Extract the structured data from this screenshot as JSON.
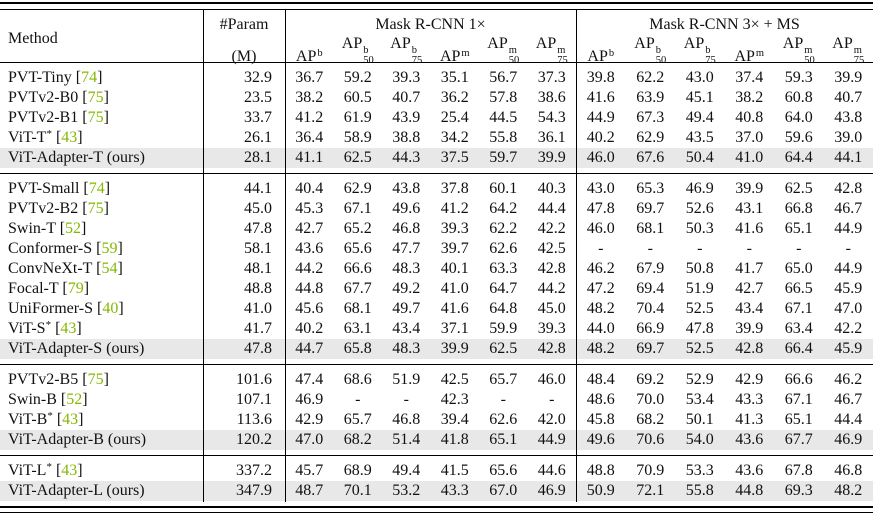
{
  "colors": {
    "citation": "#84b802",
    "highlight": "#e8e8e8"
  },
  "table": {
    "header": {
      "method_label": "Method",
      "param_label": "#Param",
      "param_unit": "(M)",
      "ap_base": "AP",
      "groups": [
        {
          "title": "Mask R-CNN 1×",
          "columns": [
            {
              "sup": "b",
              "sub": ""
            },
            {
              "sup": "b",
              "sub": "50"
            },
            {
              "sup": "b",
              "sub": "75"
            },
            {
              "sup": "m",
              "sub": ""
            },
            {
              "sup": "m",
              "sub": "50"
            },
            {
              "sup": "m",
              "sub": "75"
            }
          ]
        },
        {
          "title": "Mask R-CNN 3× + MS",
          "columns": [
            {
              "sup": "b",
              "sub": ""
            },
            {
              "sup": "b",
              "sub": "50"
            },
            {
              "sup": "b",
              "sub": "75"
            },
            {
              "sup": "m",
              "sub": ""
            },
            {
              "sup": "m",
              "sub": "50"
            },
            {
              "sup": "m",
              "sub": "75"
            }
          ]
        }
      ]
    },
    "blocks": [
      {
        "rows": [
          {
            "method": "PVT-Tiny",
            "star": false,
            "ref": "74",
            "suffix": "",
            "highlight": false,
            "param": "32.9",
            "values": [
              "36.7",
              "59.2",
              "39.3",
              "35.1",
              "56.7",
              "37.3",
              "39.8",
              "62.2",
              "43.0",
              "37.4",
              "59.3",
              "39.9"
            ]
          },
          {
            "method": "PVTv2-B0",
            "star": false,
            "ref": "75",
            "suffix": "",
            "highlight": false,
            "param": "23.5",
            "values": [
              "38.2",
              "60.5",
              "40.7",
              "36.2",
              "57.8",
              "38.6",
              "41.6",
              "63.9",
              "45.1",
              "38.2",
              "60.8",
              "40.7"
            ]
          },
          {
            "method": "PVTv2-B1",
            "star": false,
            "ref": "75",
            "suffix": "",
            "highlight": false,
            "param": "33.7",
            "values": [
              "41.2",
              "61.9",
              "43.9",
              "25.4",
              "44.5",
              "54.3",
              "44.9",
              "67.3",
              "49.4",
              "40.8",
              "64.0",
              "43.8"
            ]
          },
          {
            "method": "ViT-T",
            "star": true,
            "ref": "43",
            "suffix": "",
            "highlight": false,
            "param": "26.1",
            "values": [
              "36.4",
              "58.9",
              "38.8",
              "34.2",
              "55.8",
              "36.1",
              "40.2",
              "62.9",
              "43.5",
              "37.0",
              "59.6",
              "39.0"
            ]
          },
          {
            "method": "ViT-Adapter-T",
            "star": false,
            "ref": "",
            "suffix": "(ours)",
            "highlight": true,
            "param": "28.1",
            "values": [
              "41.1",
              "62.5",
              "44.3",
              "37.5",
              "59.7",
              "39.9",
              "46.0",
              "67.6",
              "50.4",
              "41.0",
              "64.4",
              "44.1"
            ]
          }
        ]
      },
      {
        "rows": [
          {
            "method": "PVT-Small",
            "star": false,
            "ref": "74",
            "suffix": "",
            "highlight": false,
            "param": "44.1",
            "values": [
              "40.4",
              "62.9",
              "43.8",
              "37.8",
              "60.1",
              "40.3",
              "43.0",
              "65.3",
              "46.9",
              "39.9",
              "62.5",
              "42.8"
            ]
          },
          {
            "method": "PVTv2-B2",
            "star": false,
            "ref": "75",
            "suffix": "",
            "highlight": false,
            "param": "45.0",
            "values": [
              "45.3",
              "67.1",
              "49.6",
              "41.2",
              "64.2",
              "44.4",
              "47.8",
              "69.7",
              "52.6",
              "43.1",
              "66.8",
              "46.7"
            ]
          },
          {
            "method": "Swin-T",
            "star": false,
            "ref": "52",
            "suffix": "",
            "highlight": false,
            "param": "47.8",
            "values": [
              "42.7",
              "65.2",
              "46.8",
              "39.3",
              "62.2",
              "42.2",
              "46.0",
              "68.1",
              "50.3",
              "41.6",
              "65.1",
              "44.9"
            ]
          },
          {
            "method": "Conformer-S",
            "star": false,
            "ref": "59",
            "suffix": "",
            "highlight": false,
            "param": "58.1",
            "values": [
              "43.6",
              "65.6",
              "47.7",
              "39.7",
              "62.6",
              "42.5",
              "-",
              "-",
              "-",
              "-",
              "-",
              "-"
            ]
          },
          {
            "method": "ConvNeXt-T",
            "star": false,
            "ref": "54",
            "suffix": "",
            "highlight": false,
            "param": "48.1",
            "values": [
              "44.2",
              "66.6",
              "48.3",
              "40.1",
              "63.3",
              "42.8",
              "46.2",
              "67.9",
              "50.8",
              "41.7",
              "65.0",
              "44.9"
            ]
          },
          {
            "method": "Focal-T",
            "star": false,
            "ref": "79",
            "suffix": "",
            "highlight": false,
            "param": "48.8",
            "values": [
              "44.8",
              "67.7",
              "49.2",
              "41.0",
              "64.7",
              "44.2",
              "47.2",
              "69.4",
              "51.9",
              "42.7",
              "66.5",
              "45.9"
            ]
          },
          {
            "method": "UniFormer-S",
            "star": false,
            "ref": "40",
            "suffix": "",
            "highlight": false,
            "param": "41.0",
            "values": [
              "45.6",
              "68.1",
              "49.7",
              "41.6",
              "64.8",
              "45.0",
              "48.2",
              "70.4",
              "52.5",
              "43.4",
              "67.1",
              "47.0"
            ]
          },
          {
            "method": "ViT-S",
            "star": true,
            "ref": "43",
            "suffix": "",
            "highlight": false,
            "param": "41.7",
            "values": [
              "40.2",
              "63.1",
              "43.4",
              "37.1",
              "59.9",
              "39.3",
              "44.0",
              "66.9",
              "47.8",
              "39.9",
              "63.4",
              "42.2"
            ]
          },
          {
            "method": "ViT-Adapter-S",
            "star": false,
            "ref": "",
            "suffix": "(ours)",
            "highlight": true,
            "param": "47.8",
            "values": [
              "44.7",
              "65.8",
              "48.3",
              "39.9",
              "62.5",
              "42.8",
              "48.2",
              "69.7",
              "52.5",
              "42.8",
              "66.4",
              "45.9"
            ]
          }
        ]
      },
      {
        "rows": [
          {
            "method": "PVTv2-B5",
            "star": false,
            "ref": "75",
            "suffix": "",
            "highlight": false,
            "param": "101.6",
            "values": [
              "47.4",
              "68.6",
              "51.9",
              "42.5",
              "65.7",
              "46.0",
              "48.4",
              "69.2",
              "52.9",
              "42.9",
              "66.6",
              "46.2"
            ]
          },
          {
            "method": "Swin-B",
            "star": false,
            "ref": "52",
            "suffix": "",
            "highlight": false,
            "param": "107.1",
            "values": [
              "46.9",
              "-",
              "-",
              "42.3",
              "-",
              "-",
              "48.6",
              "70.0",
              "53.4",
              "43.3",
              "67.1",
              "46.7"
            ]
          },
          {
            "method": "ViT-B",
            "star": true,
            "ref": "43",
            "suffix": "",
            "highlight": false,
            "param": "113.6",
            "values": [
              "42.9",
              "65.7",
              "46.8",
              "39.4",
              "62.6",
              "42.0",
              "45.8",
              "68.2",
              "50.1",
              "41.3",
              "65.1",
              "44.4"
            ]
          },
          {
            "method": "ViT-Adapter-B",
            "star": false,
            "ref": "",
            "suffix": "(ours)",
            "highlight": true,
            "param": "120.2",
            "values": [
              "47.0",
              "68.2",
              "51.4",
              "41.8",
              "65.1",
              "44.9",
              "49.6",
              "70.6",
              "54.0",
              "43.6",
              "67.7",
              "46.9"
            ]
          }
        ]
      },
      {
        "rows": [
          {
            "method": "ViT-L",
            "star": true,
            "ref": "43",
            "suffix": "",
            "highlight": false,
            "param": "337.2",
            "values": [
              "45.7",
              "68.9",
              "49.4",
              "41.5",
              "65.6",
              "44.6",
              "48.8",
              "70.9",
              "53.3",
              "43.6",
              "67.8",
              "46.8"
            ]
          },
          {
            "method": "ViT-Adapter-L",
            "star": false,
            "ref": "",
            "suffix": "(ours)",
            "highlight": true,
            "param": "347.9",
            "values": [
              "48.7",
              "70.1",
              "53.2",
              "43.3",
              "67.0",
              "46.9",
              "50.9",
              "72.1",
              "55.8",
              "44.8",
              "69.3",
              "48.2"
            ]
          }
        ]
      }
    ]
  }
}
